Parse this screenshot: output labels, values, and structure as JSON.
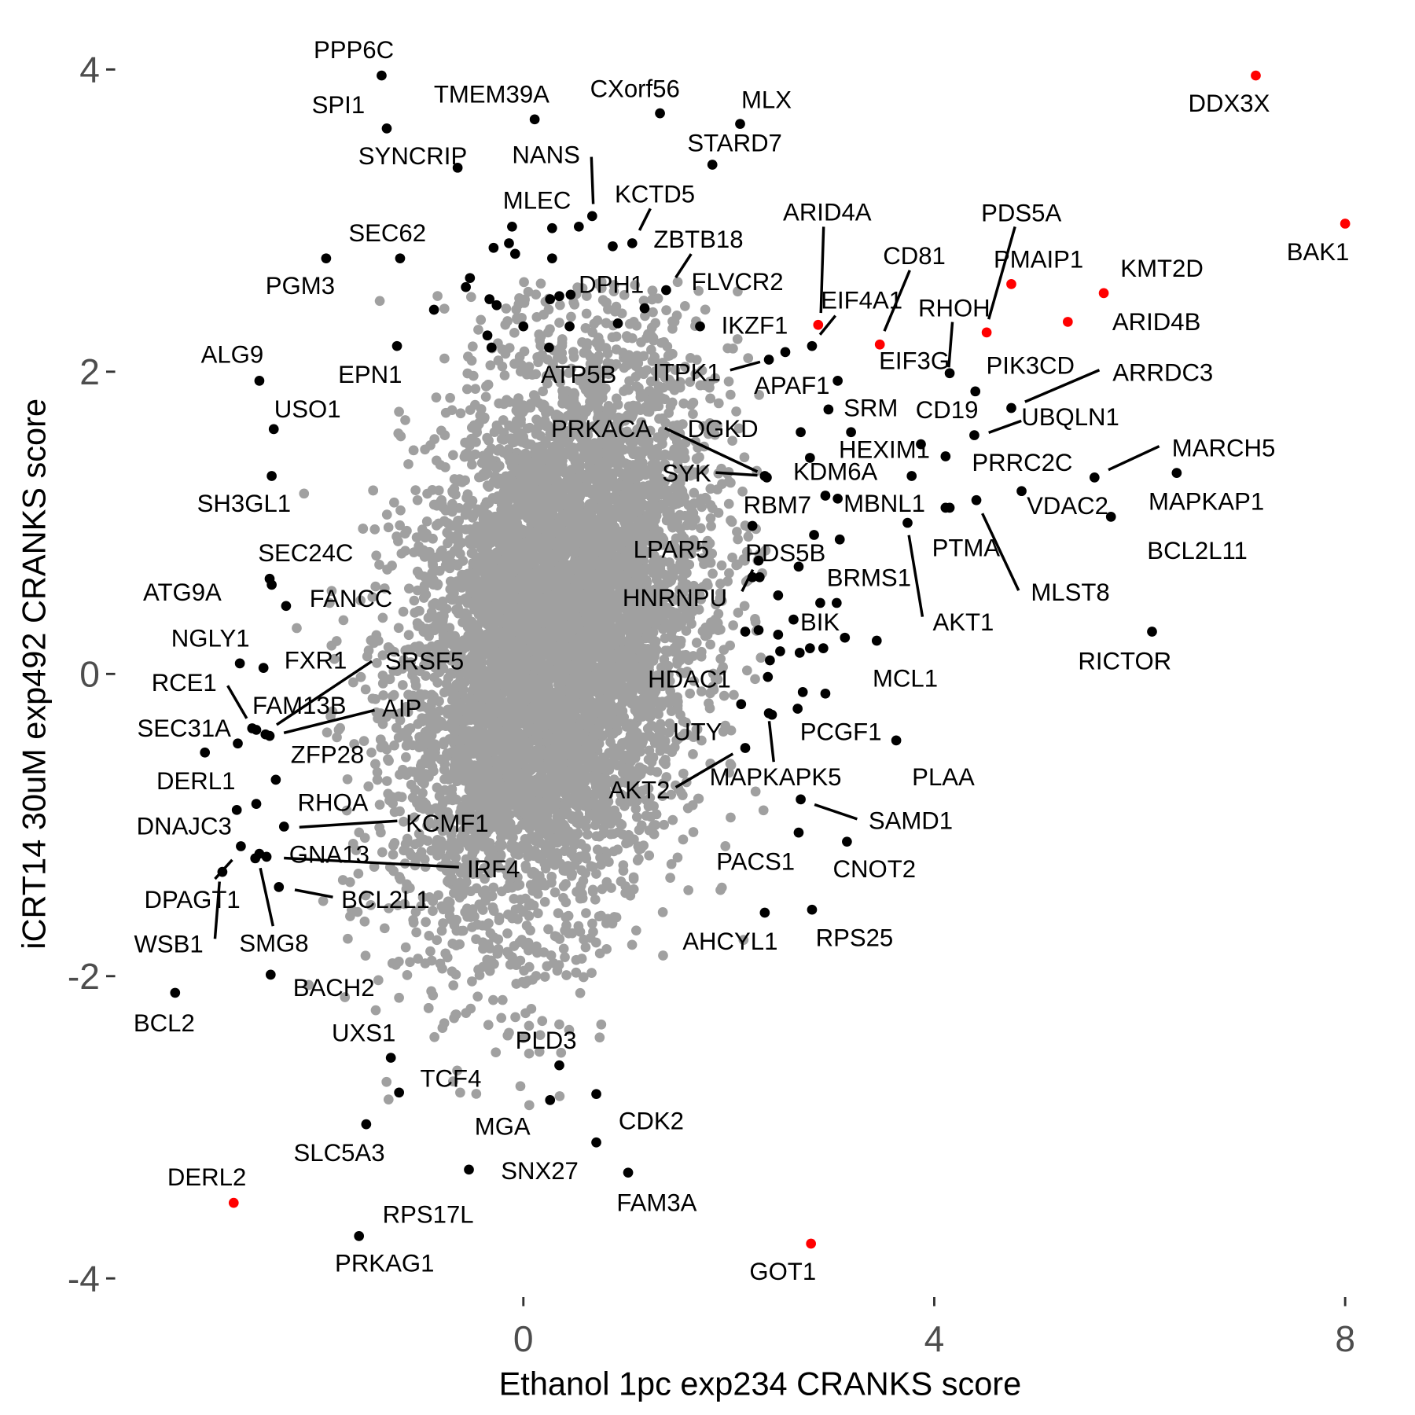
{
  "chart_data": {
    "type": "scatter",
    "title": "",
    "xlabel": "Ethanol 1pc exp234 CRANKS score",
    "ylabel": "iCRT14 30uM exp492 CRANKS score",
    "xlim": [
      -3.9,
      8.2
    ],
    "ylim": [
      -4.1,
      4.1
    ],
    "xticks": [
      0,
      4,
      8
    ],
    "xtick_labels": [
      "0",
      "4",
      "8"
    ],
    "yticks": [
      -4,
      -2,
      0,
      2,
      4
    ],
    "ytick_labels": [
      "-4",
      "-2",
      "0",
      "2",
      "4"
    ],
    "grid": false,
    "legend": "none",
    "colors": {
      "background": "#A0A0A0",
      "labeled": "#000000",
      "highlight": "#FF0000"
    },
    "labeled_points": [
      {
        "label": "DDX3X",
        "x": 7.13,
        "y": 3.96,
        "color": "highlight"
      },
      {
        "label": "BAK1",
        "x": 8.0,
        "y": 2.98,
        "color": "highlight"
      },
      {
        "label": "PMAIP1",
        "x": 4.75,
        "y": 2.58,
        "color": "highlight"
      },
      {
        "label": "KMT2D",
        "x": 5.65,
        "y": 2.52,
        "color": "highlight"
      },
      {
        "label": "ARID4B",
        "x": 5.3,
        "y": 2.33,
        "color": "highlight"
      },
      {
        "label": "PDS5A",
        "x": 4.51,
        "y": 2.26,
        "color": "highlight"
      },
      {
        "label": "ARID4A",
        "x": 2.87,
        "y": 2.31,
        "color": "highlight"
      },
      {
        "label": "CD81",
        "x": 3.47,
        "y": 2.18,
        "color": "highlight"
      },
      {
        "label": "GOT1",
        "x": 2.8,
        "y": -3.77,
        "color": "highlight"
      },
      {
        "label": "DERL2",
        "x": -2.82,
        "y": -3.5,
        "color": "highlight"
      },
      {
        "label": "PPP6C",
        "x": -1.38,
        "y": 3.96,
        "color": "labeled"
      },
      {
        "label": "SPI1",
        "x": -1.33,
        "y": 3.61,
        "color": "labeled"
      },
      {
        "label": "SYNCRIP",
        "x": -0.64,
        "y": 3.35,
        "color": "labeled"
      },
      {
        "label": "TMEM39A",
        "x": 0.11,
        "y": 3.67,
        "color": "labeled"
      },
      {
        "label": "CXorf56",
        "x": 1.33,
        "y": 3.71,
        "color": "labeled"
      },
      {
        "label": "MLX",
        "x": 2.11,
        "y": 3.64,
        "color": "labeled"
      },
      {
        "label": "STARD7",
        "x": 1.84,
        "y": 3.37,
        "color": "labeled"
      },
      {
        "label": "NANS",
        "x": 0.67,
        "y": 3.03,
        "color": "labeled"
      },
      {
        "label": "MLEC",
        "x": -0.11,
        "y": 2.96,
        "color": "labeled"
      },
      {
        "label": "KCTD5",
        "x": 1.06,
        "y": 2.85,
        "color": "labeled"
      },
      {
        "label": "ZBTB18",
        "x": 1.39,
        "y": 2.54,
        "color": "labeled"
      },
      {
        "label": "FLVCR2",
        "x": 1.18,
        "y": 2.42,
        "color": "labeled"
      },
      {
        "label": "DPH1",
        "x": 0.92,
        "y": 2.32,
        "color": "labeled"
      },
      {
        "label": "SEC62",
        "x": -1.2,
        "y": 2.75,
        "color": "labeled"
      },
      {
        "label": "PGM3",
        "x": -1.92,
        "y": 2.75,
        "color": "labeled"
      },
      {
        "label": "ALG9",
        "x": -2.57,
        "y": 1.94,
        "color": "labeled"
      },
      {
        "label": "EPN1",
        "x": -1.23,
        "y": 2.17,
        "color": "labeled"
      },
      {
        "label": "USO1",
        "x": -2.43,
        "y": 1.62,
        "color": "labeled"
      },
      {
        "label": "SH3GL1",
        "x": -2.45,
        "y": 1.31,
        "color": "labeled"
      },
      {
        "label": "ATP5B",
        "x": 0.25,
        "y": 2.16,
        "color": "labeled"
      },
      {
        "label": "ITPK1",
        "x": 2.39,
        "y": 2.08,
        "color": "labeled"
      },
      {
        "label": "APAF1",
        "x": 2.55,
        "y": 2.13,
        "color": "labeled"
      },
      {
        "label": "IKZF1",
        "x": 1.72,
        "y": 2.3,
        "color": "labeled"
      },
      {
        "label": "EIF4A1",
        "x": 2.81,
        "y": 2.17,
        "color": "labeled"
      },
      {
        "label": "RHOH",
        "x": 4.15,
        "y": 1.99,
        "color": "labeled"
      },
      {
        "label": "EIF3G",
        "x": 3.06,
        "y": 1.94,
        "color": "labeled"
      },
      {
        "label": "PIK3CD",
        "x": 4.4,
        "y": 1.87,
        "color": "labeled"
      },
      {
        "label": "SRM",
        "x": 2.97,
        "y": 1.75,
        "color": "labeled"
      },
      {
        "label": "CD19",
        "x": 3.19,
        "y": 1.6,
        "color": "labeled"
      },
      {
        "label": "ARRDC3",
        "x": 4.75,
        "y": 1.76,
        "color": "labeled"
      },
      {
        "label": "UBQLN1",
        "x": 4.39,
        "y": 1.58,
        "color": "labeled"
      },
      {
        "label": "PRKACA",
        "x": 2.35,
        "y": 1.31,
        "color": "labeled"
      },
      {
        "label": "DGKD",
        "x": 2.7,
        "y": 1.6,
        "color": "labeled"
      },
      {
        "label": "SYK",
        "x": 2.37,
        "y": 1.3,
        "color": "labeled"
      },
      {
        "label": "KDM6A",
        "x": 2.79,
        "y": 1.43,
        "color": "labeled"
      },
      {
        "label": "HEXIM1",
        "x": 3.87,
        "y": 1.52,
        "color": "labeled"
      },
      {
        "label": "PRRC2C",
        "x": 4.11,
        "y": 1.44,
        "color": "labeled"
      },
      {
        "label": "MARCH5",
        "x": 5.56,
        "y": 1.3,
        "color": "labeled"
      },
      {
        "label": "MAPKAP1",
        "x": 6.36,
        "y": 1.33,
        "color": "labeled"
      },
      {
        "label": "VDAC2",
        "x": 4.85,
        "y": 1.21,
        "color": "labeled"
      },
      {
        "label": "BCL2L11",
        "x": 5.72,
        "y": 1.04,
        "color": "labeled"
      },
      {
        "label": "RBM7",
        "x": 2.94,
        "y": 1.18,
        "color": "labeled"
      },
      {
        "label": "MBNL1",
        "x": 3.78,
        "y": 1.31,
        "color": "labeled"
      },
      {
        "label": "PTMA",
        "x": 4.15,
        "y": 1.1,
        "color": "labeled"
      },
      {
        "label": "MLST8",
        "x": 4.41,
        "y": 1.15,
        "color": "labeled"
      },
      {
        "label": "AKT1",
        "x": 3.74,
        "y": 1.0,
        "color": "labeled"
      },
      {
        "label": "RICTOR",
        "x": 6.12,
        "y": 0.28,
        "color": "labeled"
      },
      {
        "label": "LPAR5",
        "x": 2.23,
        "y": 0.98,
        "color": "labeled"
      },
      {
        "label": "PDS5B",
        "x": 2.23,
        "y": 0.64,
        "color": "labeled"
      },
      {
        "label": "HNRNPU",
        "x": 2.29,
        "y": 0.75,
        "color": "labeled"
      },
      {
        "label": "BRMS1",
        "x": 3.08,
        "y": 0.89,
        "color": "labeled"
      },
      {
        "label": "BIK",
        "x": 2.63,
        "y": 0.36,
        "color": "labeled"
      },
      {
        "label": "MCL1",
        "x": 3.44,
        "y": 0.22,
        "color": "labeled"
      },
      {
        "label": "HDAC1",
        "x": 2.38,
        "y": -0.02,
        "color": "labeled"
      },
      {
        "label": "UTY",
        "x": 2.12,
        "y": -0.2,
        "color": "labeled"
      },
      {
        "label": "PCGF1",
        "x": 2.72,
        "y": -0.12,
        "color": "labeled"
      },
      {
        "label": "PLAA",
        "x": 3.63,
        "y": -0.44,
        "color": "labeled"
      },
      {
        "label": "MAPKAPK5",
        "x": 2.39,
        "y": -0.26,
        "color": "labeled"
      },
      {
        "label": "AKT2",
        "x": 2.16,
        "y": -0.49,
        "color": "labeled"
      },
      {
        "label": "SAMD1",
        "x": 2.7,
        "y": -0.83,
        "color": "labeled"
      },
      {
        "label": "PACS1",
        "x": 2.68,
        "y": -1.05,
        "color": "labeled"
      },
      {
        "label": "CNOT2",
        "x": 3.15,
        "y": -1.11,
        "color": "labeled"
      },
      {
        "label": "AHCYL1",
        "x": 2.35,
        "y": -1.58,
        "color": "labeled"
      },
      {
        "label": "RPS25",
        "x": 2.81,
        "y": -1.56,
        "color": "labeled"
      },
      {
        "label": "SEC24C",
        "x": -2.47,
        "y": 0.63,
        "color": "labeled"
      },
      {
        "label": "ATG9A",
        "x": -2.45,
        "y": 0.59,
        "color": "labeled"
      },
      {
        "label": "FANCC",
        "x": -2.31,
        "y": 0.45,
        "color": "labeled"
      },
      {
        "label": "NGLY1",
        "x": -2.76,
        "y": 0.07,
        "color": "labeled"
      },
      {
        "label": "FXR1",
        "x": -2.53,
        "y": 0.04,
        "color": "labeled"
      },
      {
        "label": "RCE1",
        "x": -2.6,
        "y": -0.37,
        "color": "labeled"
      },
      {
        "label": "SRSF5",
        "x": -2.51,
        "y": -0.4,
        "color": "labeled"
      },
      {
        "label": "FAM13B",
        "x": -2.64,
        "y": -0.36,
        "color": "labeled"
      },
      {
        "label": "AIP",
        "x": -2.47,
        "y": -0.41,
        "color": "labeled"
      },
      {
        "label": "SEC31A",
        "x": -3.1,
        "y": -0.52,
        "color": "labeled"
      },
      {
        "label": "ZFP28",
        "x": -2.78,
        "y": -0.46,
        "color": "labeled"
      },
      {
        "label": "DERL1",
        "x": -2.41,
        "y": -0.7,
        "color": "labeled"
      },
      {
        "label": "RHOA",
        "x": -2.6,
        "y": -0.86,
        "color": "labeled"
      },
      {
        "label": "DNAJC3",
        "x": -2.79,
        "y": -0.9,
        "color": "labeled"
      },
      {
        "label": "KCMF1",
        "x": -2.33,
        "y": -1.01,
        "color": "labeled"
      },
      {
        "label": "GNA13",
        "x": -2.5,
        "y": -1.21,
        "color": "labeled"
      },
      {
        "label": "IRF4",
        "x": -2.57,
        "y": -1.19,
        "color": "labeled"
      },
      {
        "label": "DPAGT1",
        "x": -2.75,
        "y": -1.14,
        "color": "labeled"
      },
      {
        "label": "BCL2L1",
        "x": -2.38,
        "y": -1.41,
        "color": "labeled"
      },
      {
        "label": "WSB1",
        "x": -2.93,
        "y": -1.31,
        "color": "labeled"
      },
      {
        "label": "SMG8",
        "x": -2.61,
        "y": -1.22,
        "color": "labeled"
      },
      {
        "label": "BACH2",
        "x": -2.46,
        "y": -1.99,
        "color": "labeled"
      },
      {
        "label": "BCL2",
        "x": -3.39,
        "y": -2.11,
        "color": "labeled"
      },
      {
        "label": "UXS1",
        "x": -1.29,
        "y": -2.54,
        "color": "labeled"
      },
      {
        "label": "TCF4",
        "x": -1.21,
        "y": -2.77,
        "color": "labeled"
      },
      {
        "label": "PLD3",
        "x": 0.35,
        "y": -2.59,
        "color": "labeled"
      },
      {
        "label": "MGA",
        "x": 0.26,
        "y": -2.82,
        "color": "labeled"
      },
      {
        "label": "CDK2",
        "x": 0.71,
        "y": -2.78,
        "color": "labeled"
      },
      {
        "label": "SLC5A3",
        "x": -1.53,
        "y": -2.98,
        "color": "labeled"
      },
      {
        "label": "SNX27",
        "x": 0.71,
        "y": -3.1,
        "color": "labeled"
      },
      {
        "label": "FAM3A",
        "x": 1.02,
        "y": -3.3,
        "color": "labeled"
      },
      {
        "label": "RPS17L",
        "x": -0.53,
        "y": -3.28,
        "color": "labeled"
      },
      {
        "label": "PRKAG1",
        "x": -1.6,
        "y": -3.72,
        "color": "labeled"
      }
    ],
    "unlabeled_hits": [
      [
        0.28,
        2.95
      ],
      [
        0.54,
        2.96
      ],
      [
        -0.29,
        2.82
      ],
      [
        -0.14,
        2.85
      ],
      [
        -0.08,
        2.78
      ],
      [
        0.28,
        2.75
      ],
      [
        0.87,
        2.83
      ],
      [
        -0.52,
        2.62
      ],
      [
        -0.56,
        2.56
      ],
      [
        -0.33,
        2.48
      ],
      [
        -0.26,
        2.44
      ],
      [
        0.0,
        2.3
      ],
      [
        0.26,
        2.48
      ],
      [
        0.35,
        2.5
      ],
      [
        0.46,
        2.51
      ],
      [
        -0.35,
        2.24
      ],
      [
        -0.31,
        2.16
      ],
      [
        0.45,
        2.3
      ],
      [
        -0.87,
        2.41
      ],
      [
        3.06,
        1.16
      ],
      [
        2.83,
        0.92
      ],
      [
        2.68,
        0.71
      ],
      [
        2.48,
        0.52
      ],
      [
        2.3,
        0.64
      ],
      [
        2.89,
        0.47
      ],
      [
        3.05,
        0.47
      ],
      [
        2.16,
        0.28
      ],
      [
        2.29,
        0.29
      ],
      [
        2.48,
        0.26
      ],
      [
        2.79,
        0.17
      ],
      [
        2.92,
        0.17
      ],
      [
        2.69,
        0.14
      ],
      [
        2.5,
        0.15
      ],
      [
        2.4,
        0.09
      ],
      [
        2.42,
        -0.27
      ],
      [
        2.67,
        -0.23
      ],
      [
        2.94,
        -0.13
      ],
      [
        3.13,
        0.24
      ],
      [
        4.11,
        1.1
      ]
    ]
  }
}
